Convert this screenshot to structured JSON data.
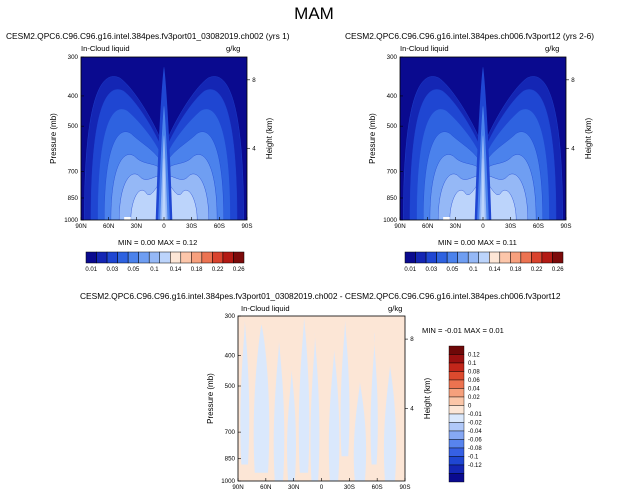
{
  "season": "MAM",
  "colors": {
    "scale_main": [
      "#0a0a8f",
      "#1426b4",
      "#1f46d2",
      "#2e62e0",
      "#4b82ec",
      "#6f9ef2",
      "#95b8f6",
      "#bcd4fb",
      "#fde6d6",
      "#fcc6aa",
      "#f7a07e",
      "#ec7352",
      "#d9432e",
      "#b31a14",
      "#7c0a0a"
    ],
    "diff_scale": [
      "#0a0a8f",
      "#1426b4",
      "#1f46d2",
      "#3660e4",
      "#5884ee",
      "#86a8f4",
      "#b0c8f8",
      "#dae8fc",
      "#fce6d6",
      "#fbc6a8",
      "#f6a07c",
      "#ec7350",
      "#dc4a2e",
      "#c2261a",
      "#9a1010",
      "#6e0808"
    ]
  },
  "panels": [
    {
      "title": "CESM2.QPC6.C96.C96.g16.intel.384pes.fv3port01_03082019.ch002 (yrs 1)",
      "field": "In-Cloud liquid",
      "units": "g/kg",
      "stats": "MIN =  0.00  MAX =  0.12",
      "ylabel": "Pressure (mb)",
      "ylabel2": "Height (km)"
    },
    {
      "title": "CESM2.QPC6.C96.C96.g16.intel.384pes.ch006.fv3port12 (yrs 2-6)",
      "field": "In-Cloud liquid",
      "units": "g/kg",
      "stats": "MIN =  0.00  MAX =  0.11",
      "ylabel": "Pressure (mb)",
      "ylabel2": "Height (km)"
    },
    {
      "title": "CESM2.QPC6.C96.C96.g16.intel.384pes.fv3port01_03082019.ch002 - CESM2.QPC6.C96.C96.g16.intel.384pes.ch006.fv3port12",
      "field": "In-Cloud liquid",
      "units": "g/kg",
      "stats": "MIN = -0.01  MAX =  0.01",
      "ylabel": "Pressure (mb)",
      "ylabel2": "Height (km)"
    }
  ],
  "axes": {
    "x_ticks": [
      "90N",
      "60N",
      "30N",
      "0",
      "30S",
      "60S",
      "90S"
    ],
    "p_ticks": [
      "300",
      "400",
      "500",
      "700",
      "850",
      "1000"
    ],
    "h_ticks": [
      "8",
      "4"
    ]
  },
  "colorbar_main": [
    "0.01",
    "0.03",
    "0.05",
    "0.1",
    "0.14",
    "0.18",
    "0.22",
    "0.26"
  ],
  "colorbar_diff": [
    "0.12",
    "0.1",
    "0.08",
    "0.06",
    "0.04",
    "0.02",
    "0",
    "-0.01",
    "-0.02",
    "-0.04",
    "-0.06",
    "-0.08",
    "-0.1",
    "-0.12"
  ],
  "chart_data": [
    {
      "type": "heatmap",
      "title": "CESM2.QPC6.C96.C96.g16.intel.384pes.fv3port01_03082019.ch002 (yrs 1)",
      "subtitle": "In-Cloud liquid",
      "units": "g/kg",
      "xlabel": "",
      "ylabel": "Pressure (mb)",
      "ylabel_right": "Height (km)",
      "x": [
        "90N",
        "60N",
        "30N",
        "0",
        "30S",
        "60S",
        "90S"
      ],
      "y_ticks": [
        300,
        400,
        500,
        700,
        850,
        1000
      ],
      "ylim": [
        1000,
        300
      ],
      "min": 0.0,
      "max": 0.12
    },
    {
      "type": "heatmap",
      "title": "CESM2.QPC6.C96.C96.g16.intel.384pes.ch006.fv3port12 (yrs 2-6)",
      "subtitle": "In-Cloud liquid",
      "units": "g/kg",
      "xlabel": "",
      "ylabel": "Pressure (mb)",
      "ylabel_right": "Height (km)",
      "x": [
        "90N",
        "60N",
        "30N",
        "0",
        "30S",
        "60S",
        "90S"
      ],
      "y_ticks": [
        300,
        400,
        500,
        700,
        850,
        1000
      ],
      "ylim": [
        1000,
        300
      ],
      "min": 0.0,
      "max": 0.11
    },
    {
      "type": "heatmap",
      "title": "CESM2.QPC6.C96.C96.g16.intel.384pes.fv3port01_03082019.ch002 - CESM2.QPC6.C96.C96.g16.intel.384pes.ch006.fv3port12",
      "subtitle": "In-Cloud liquid",
      "units": "g/kg",
      "xlabel": "",
      "ylabel": "Pressure (mb)",
      "ylabel_right": "Height (km)",
      "x": [
        "90N",
        "60N",
        "30N",
        "0",
        "30S",
        "60S",
        "90S"
      ],
      "y_ticks": [
        300,
        400,
        500,
        700,
        850,
        1000
      ],
      "ylim": [
        1000,
        300
      ],
      "min": -0.01,
      "max": 0.01
    }
  ]
}
